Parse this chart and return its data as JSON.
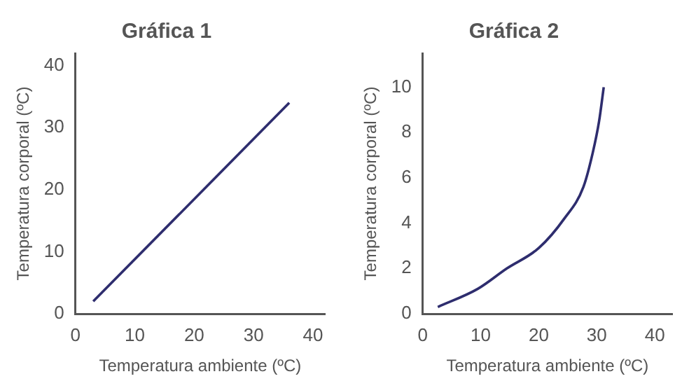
{
  "chart_data": [
    {
      "type": "line",
      "title": "Gráfica 1",
      "xlabel": "Temperatura ambiente (ºC)",
      "ylabel": "Temperatura corporal (ºC)",
      "series": [
        {
          "color": "#2e2d6e",
          "x": [
            3,
            36
          ],
          "values": [
            2,
            34
          ]
        }
      ],
      "xlim": [
        0,
        42
      ],
      "ylim": [
        0,
        42
      ],
      "xticks": [
        0,
        10,
        20,
        30,
        40
      ],
      "yticks": [
        0,
        10,
        20,
        30,
        40
      ],
      "grid": false,
      "legend": false,
      "marker": "none",
      "line_style": "solid"
    },
    {
      "type": "line",
      "title": "Gráfica 2",
      "xlabel": "Temperatura ambiente (ºC)",
      "ylabel": "Temperatura corporal (ºC)",
      "series": [
        {
          "color": "#2e2d6e",
          "x": [
            2.6,
            9.5,
            14.5,
            20,
            24.4,
            27.7,
            29.3,
            30.4,
            31.2
          ],
          "values": [
            0.3,
            1.1,
            2.0,
            2.9,
            4.2,
            5.6,
            7.1,
            8.5,
            10.0
          ]
        }
      ],
      "xlim": [
        0,
        43
      ],
      "ylim": [
        0,
        11.5
      ],
      "xticks": [
        0,
        10,
        20,
        30,
        40
      ],
      "yticks": [
        0,
        2,
        4,
        6,
        8,
        10
      ],
      "grid": false,
      "legend": false,
      "marker": "none",
      "line_style": "solid"
    }
  ]
}
